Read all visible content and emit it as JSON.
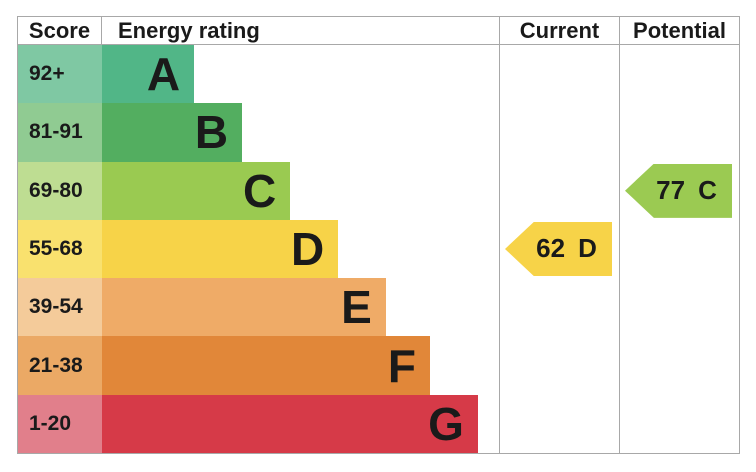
{
  "header": {
    "score": "Score",
    "energy_rating": "Energy rating",
    "current": "Current",
    "potential": "Potential"
  },
  "bands": [
    {
      "score": "92+",
      "letter": "A",
      "bar_color": "#51b687",
      "score_color": "#7fc8a3",
      "bar_width": "23.2%"
    },
    {
      "score": "81-91",
      "letter": "B",
      "bar_color": "#53ae60",
      "score_color": "#90cb92",
      "bar_width": "35.3%"
    },
    {
      "score": "69-80",
      "letter": "C",
      "bar_color": "#9aca51",
      "score_color": "#bedd92",
      "bar_width": "47.4%"
    },
    {
      "score": "55-68",
      "letter": "D",
      "bar_color": "#f7d348",
      "score_color": "#f9e16e",
      "bar_width": "59.5%"
    },
    {
      "score": "39-54",
      "letter": "E",
      "bar_color": "#efab67",
      "score_color": "#f4cb9a",
      "bar_width": "71.5%"
    },
    {
      "score": "21-38",
      "letter": "F",
      "bar_color": "#e18739",
      "score_color": "#eba965",
      "bar_width": "82.6%"
    },
    {
      "score": "1-20",
      "letter": "G",
      "bar_color": "#d63a48",
      "score_color": "#e17f8b",
      "bar_width": "94.7%"
    }
  ],
  "current": {
    "value": "62",
    "letter": "D",
    "color": "#f7d348"
  },
  "potential": {
    "value": "77",
    "letter": "C",
    "color": "#9bca52"
  },
  "colors": {
    "border": "#a8a8a8",
    "text": "#1a1a1a",
    "background": "#ffffff"
  },
  "chart_data": {
    "type": "bar",
    "categories": [
      "A",
      "B",
      "C",
      "D",
      "E",
      "F",
      "G"
    ],
    "score_ranges": [
      "92+",
      "81-91",
      "69-80",
      "55-68",
      "39-54",
      "21-38",
      "1-20"
    ],
    "bar_lengths_relative": [
      0.23,
      0.35,
      0.47,
      0.59,
      0.72,
      0.83,
      0.95
    ],
    "columns": [
      "Score",
      "Energy rating",
      "Current",
      "Potential"
    ],
    "current": {
      "score": 62,
      "rating": "D"
    },
    "potential": {
      "score": 77,
      "rating": "C"
    },
    "legend_position": "none",
    "grid": false
  }
}
